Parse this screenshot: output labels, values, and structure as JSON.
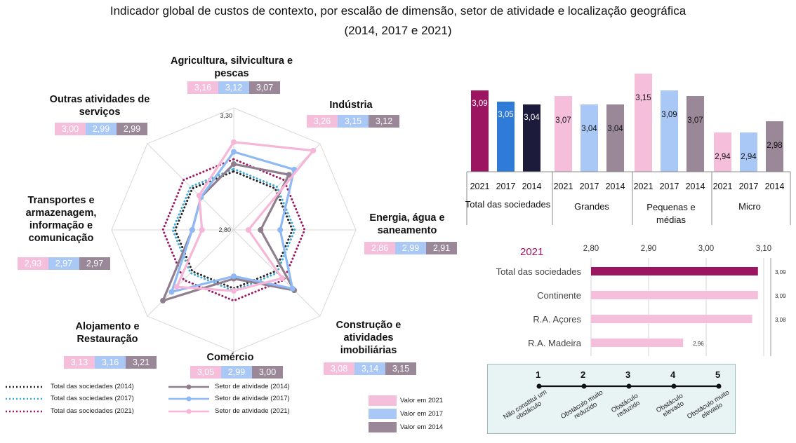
{
  "title_line1": "Indicador global de custos de contexto, por escalão de dimensão, setor de atividade e localização geográfica",
  "title_line2": "(2014, 2017 e 2021)",
  "chart_data": [
    {
      "type": "radar",
      "axis_min_label": "2,80",
      "axis_max_label": "3,30",
      "range": [
        2.8,
        3.3
      ],
      "sectors": [
        {
          "label": "Agricultura, silvicultura e pescas",
          "v2021": "3,16",
          "v2017": "3,12",
          "v2014": "3,07"
        },
        {
          "label": "Indústria",
          "v2021": "3,26",
          "v2017": "3,15",
          "v2014": "3,12"
        },
        {
          "label": "Energia, água e saneamento",
          "v2021": "2,86",
          "v2017": "2,99",
          "v2014": "2,91"
        },
        {
          "label": "Construção e atividades imobiliárias",
          "v2021": "3,08",
          "v2017": "3,14",
          "v2014": "3,15"
        },
        {
          "label": "Comércio",
          "v2021": "3,05",
          "v2017": "2,99",
          "v2014": "3,00"
        },
        {
          "label": "Alojamento e Restauração",
          "v2021": "3,13",
          "v2017": "3,16",
          "v2014": "3,21"
        },
        {
          "label": "Transportes e armazenagem, informação e comunicação",
          "v2021": "2,93",
          "v2017": "2,97",
          "v2014": "2,97"
        },
        {
          "label": "Outras atividades de serviços",
          "v2021": "3,00",
          "v2017": "2,99",
          "v2014": "2,99"
        }
      ],
      "sector_series": {
        "2014": [
          3.07,
          3.12,
          2.91,
          3.15,
          3.0,
          3.21,
          2.97,
          2.99
        ],
        "2017": [
          3.12,
          3.15,
          2.99,
          3.14,
          2.99,
          3.16,
          2.97,
          2.99
        ],
        "2021": [
          3.16,
          3.26,
          2.86,
          3.08,
          3.05,
          3.13,
          2.93,
          3.0
        ]
      },
      "total_series": {
        "2014": 3.04,
        "2017": 3.05,
        "2021": 3.09
      },
      "legend": [
        "Total das sociedades (2014)",
        "Total das sociedades (2017)",
        "Total das sociedades (2021)",
        "Setor de atividade (2014)",
        "Setor de atividade (2017)",
        "Setor de atividade (2021)"
      ],
      "chip_legend": [
        "Valor em 2021",
        "Valor em 2017",
        "Valor em 2014"
      ]
    },
    {
      "type": "bar",
      "groups": [
        {
          "label": "Total das sociedades",
          "values": [
            3.09,
            3.05,
            3.04
          ],
          "labels": [
            "3,09",
            "3,05",
            "3,04"
          ]
        },
        {
          "label": "Grandes",
          "values": [
            3.07,
            3.04,
            3.04
          ],
          "labels": [
            "3,07",
            "3,04",
            "3,04"
          ]
        },
        {
          "label": "Pequenas e médias",
          "values": [
            3.15,
            3.09,
            3.07
          ],
          "labels": [
            "3,15",
            "3,09",
            "3,07"
          ]
        },
        {
          "label": "Micro",
          "values": [
            2.94,
            2.94,
            2.98
          ],
          "labels": [
            "2,94",
            "2,94",
            "2,98"
          ]
        }
      ],
      "years": [
        "2021",
        "2017",
        "2014"
      ],
      "ylim": [
        2.8,
        3.2
      ]
    },
    {
      "type": "bar",
      "orientation": "horizontal",
      "title": "2021",
      "categories": [
        "Total das sociedades",
        "Continente",
        "R.A. Açores",
        "R.A. Madeira"
      ],
      "values": [
        3.09,
        3.09,
        3.08,
        2.96
      ],
      "labels": [
        "3,09",
        "3,09",
        "3,08",
        "2,96"
      ],
      "xlim": [
        2.8,
        3.1
      ],
      "ticks": [
        "2,80",
        "2,90",
        "3,00",
        "3,10"
      ]
    }
  ],
  "scale": {
    "points": [
      {
        "num": "1",
        "text": "Não constitui um obstáculo"
      },
      {
        "num": "2",
        "text": "Obstáculo muito reduzido"
      },
      {
        "num": "3",
        "text": "Obstáculo reduzido"
      },
      {
        "num": "4",
        "text": "Obstáculo elevado"
      },
      {
        "num": "5",
        "text": "Obstáculo muito elevado"
      }
    ]
  },
  "colors": {
    "c2021": "#f5bfdc",
    "c2017": "#a9c8f5",
    "c2014": "#9a8797",
    "line2021": "#f6b6d8",
    "line2017": "#8fb9f5",
    "line2014": "#8f7f8e",
    "tot2014": "#222222",
    "tot2017": "#3fa9d8",
    "tot2021": "#9b1560",
    "totbar2021": "#9b1560",
    "totbar2017": "#2f7bd8",
    "totbar2014": "#1d1b3c"
  }
}
